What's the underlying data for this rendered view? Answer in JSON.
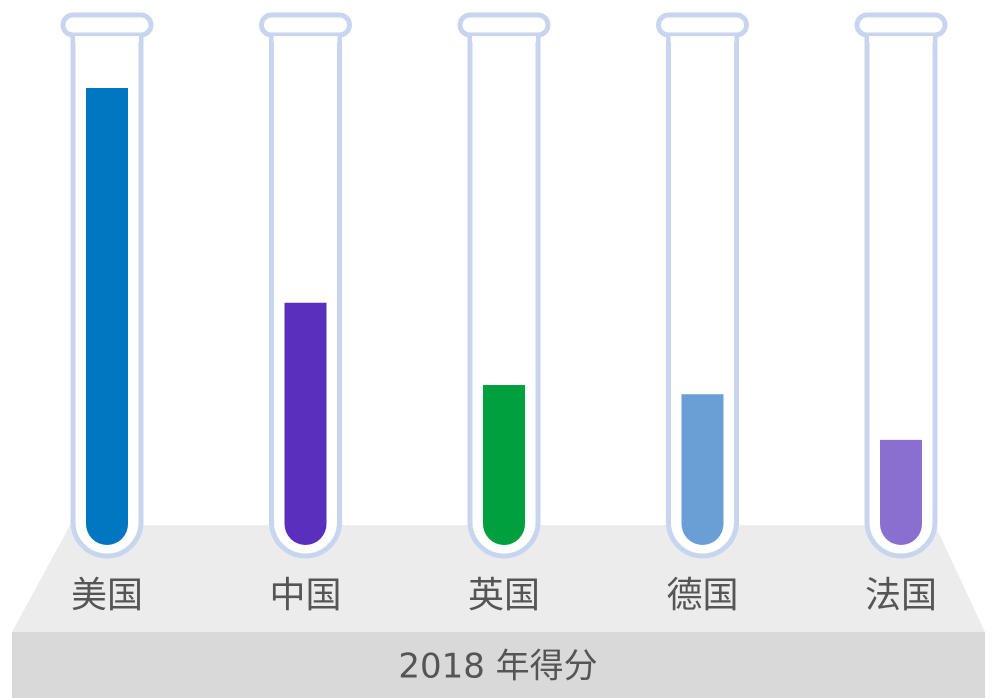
{
  "chart_data": {
    "type": "bar",
    "title": "2018 年得分",
    "categories": [
      "美国",
      "中国",
      "英国",
      "德国",
      "法国"
    ],
    "values": [
      100,
      53,
      35,
      33,
      23
    ],
    "colors": [
      "#0077c0",
      "#5b2fbd",
      "#00a03e",
      "#6a9fd6",
      "#8b6fd0"
    ]
  }
}
